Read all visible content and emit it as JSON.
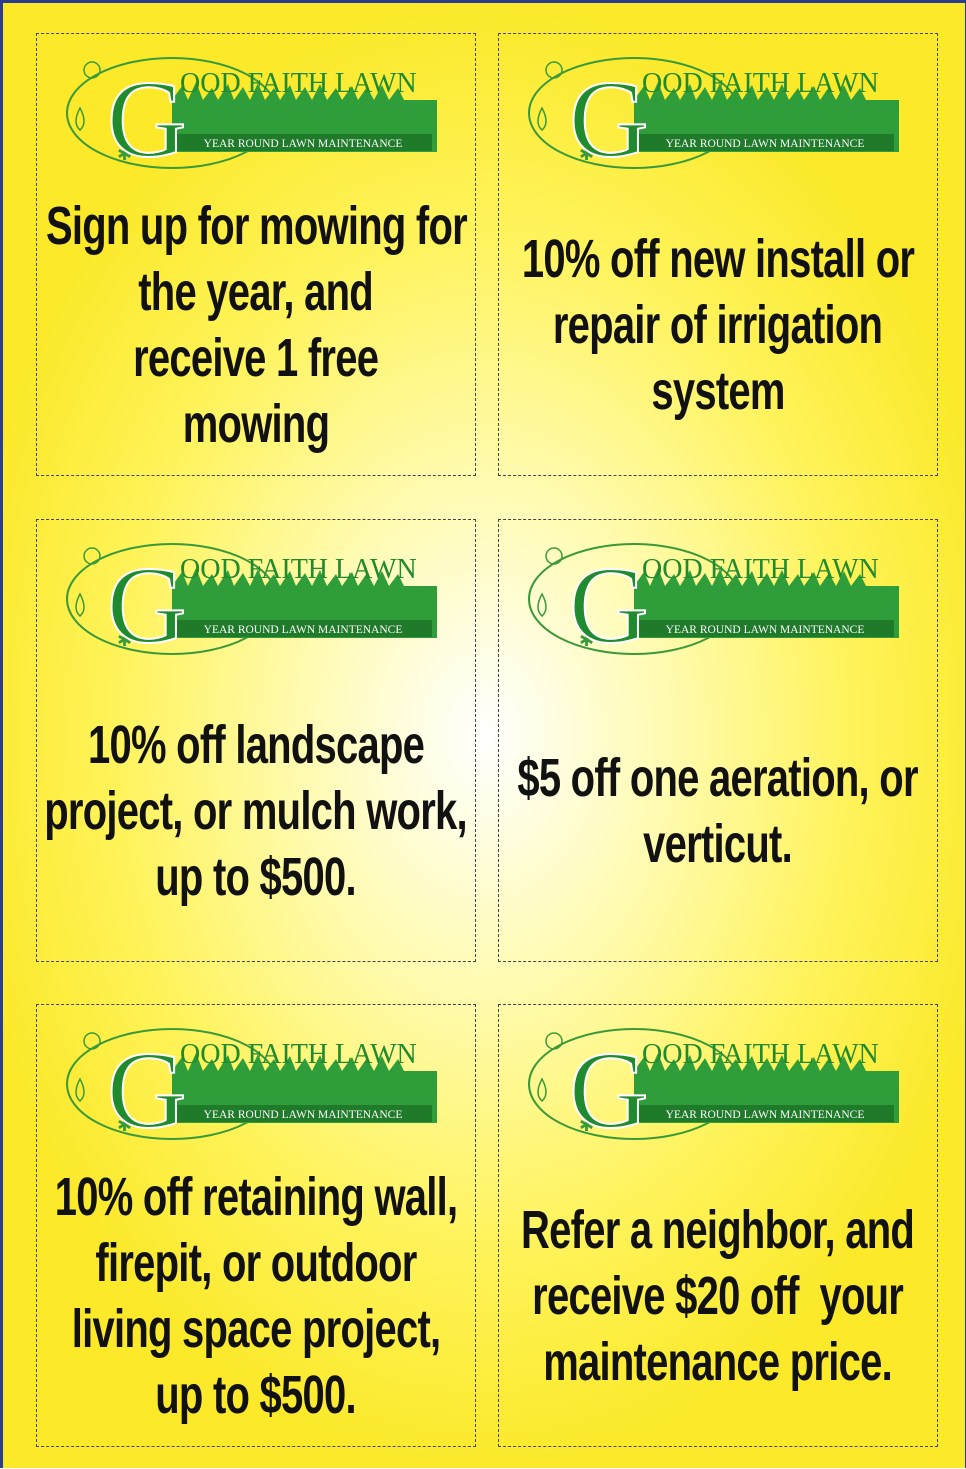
{
  "logo": {
    "initial": "G",
    "name": "OOD FAITH LAWN",
    "tagline": "YEAR ROUND LAWN MAINTENANCE"
  },
  "coupons": [
    {
      "lines": [
        "Sign up for mowing for",
        "the year, and",
        "receive 1 free",
        "mowing"
      ]
    },
    {
      "lines": [
        "10% off new install or",
        "repair of irrigation",
        "system"
      ]
    },
    {
      "lines": [
        "10% off landscape",
        "project, or mulch work,",
        "up to $500."
      ]
    },
    {
      "lines": [
        "$5 off one aeration, or",
        "verticut."
      ]
    },
    {
      "lines": [
        "10% off retaining wall,",
        "firepit, or outdoor",
        "living space project,",
        "up to $500."
      ]
    },
    {
      "lines": [
        "Refer a neighbor, and",
        "receive $20 off  your",
        "maintenance price."
      ]
    }
  ]
}
